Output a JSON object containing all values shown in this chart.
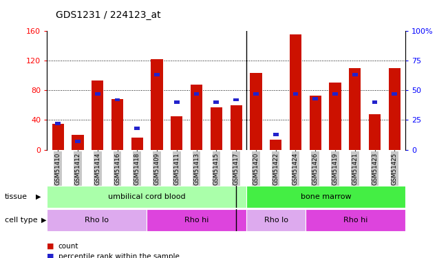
{
  "title": "GDS1231 / 224123_at",
  "samples": [
    "GSM51410",
    "GSM51412",
    "GSM51414",
    "GSM51416",
    "GSM51418",
    "GSM51409",
    "GSM51411",
    "GSM51413",
    "GSM51415",
    "GSM51417",
    "GSM51420",
    "GSM51422",
    "GSM51424",
    "GSM51426",
    "GSM51419",
    "GSM51421",
    "GSM51423",
    "GSM51425"
  ],
  "counts": [
    35,
    20,
    93,
    68,
    16,
    122,
    45,
    88,
    57,
    60,
    103,
    13,
    155,
    73,
    90,
    110,
    48,
    110
  ],
  "percentiles": [
    22,
    7,
    47,
    42,
    18,
    63,
    40,
    47,
    40,
    42,
    47,
    13,
    47,
    43,
    47,
    63,
    40,
    47
  ],
  "ylim_left": [
    0,
    160
  ],
  "ylim_right": [
    0,
    100
  ],
  "yticks_left": [
    0,
    40,
    80,
    120,
    160
  ],
  "yticks_right": [
    0,
    25,
    50,
    75,
    100
  ],
  "ytick_labels_left": [
    "0",
    "40",
    "80",
    "120",
    "160"
  ],
  "ytick_labels_right": [
    "0",
    "25",
    "50",
    "75",
    "100%"
  ],
  "bar_color": "#cc1100",
  "percentile_color": "#2222cc",
  "tissue_groups": [
    {
      "label": "umbilical cord blood",
      "start": 0,
      "end": 10,
      "color": "#aaffaa"
    },
    {
      "label": "bone marrow",
      "start": 10,
      "end": 18,
      "color": "#44ee44"
    }
  ],
  "cell_type_groups": [
    {
      "label": "Rho lo",
      "start": 0,
      "end": 5,
      "color": "#ddaaee"
    },
    {
      "label": "Rho hi",
      "start": 5,
      "end": 10,
      "color": "#dd44dd"
    },
    {
      "label": "Rho lo",
      "start": 10,
      "end": 13,
      "color": "#ddaaee"
    },
    {
      "label": "Rho hi",
      "start": 13,
      "end": 18,
      "color": "#dd44dd"
    }
  ],
  "separator_after": 9,
  "tick_label_bg": "#c8c8c8"
}
